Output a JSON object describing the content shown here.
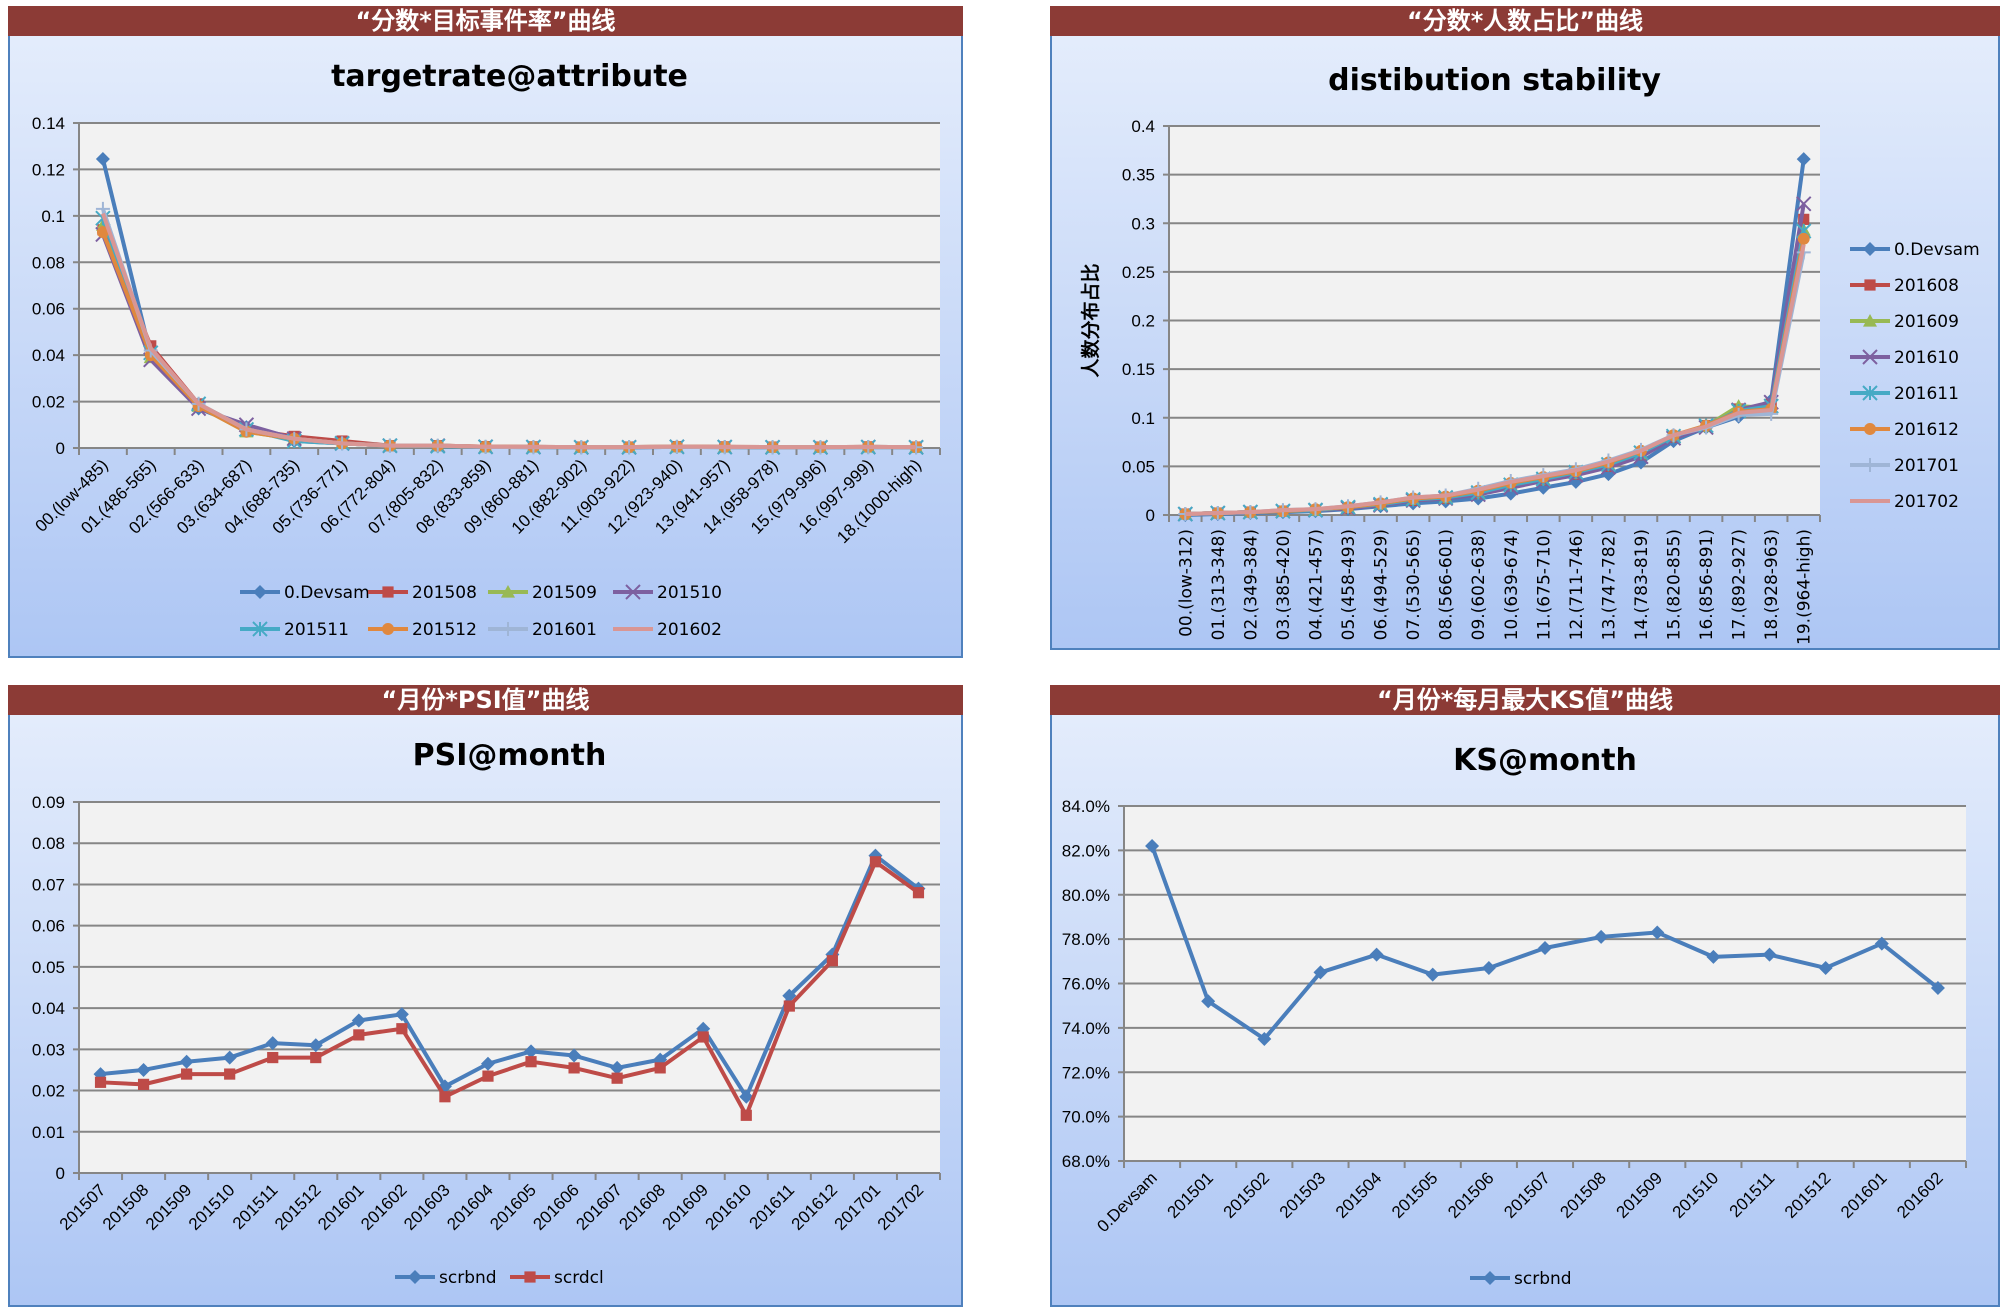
{
  "chart_data": [
    {
      "type": "line",
      "header": "“分数*目标事件率”曲线",
      "title": "targetrate@attribute",
      "ylabel": "",
      "ylim": [
        0,
        0.14
      ],
      "y_ticks": [
        "0",
        "0.02",
        "0.04",
        "0.06",
        "0.08",
        "0.1",
        "0.12",
        "0.14"
      ],
      "legend_position": "bottom",
      "categories": [
        "00.(low-485)",
        "01.(486-565)",
        "02.(566-633)",
        "03.(634-687)",
        "04.(688-735)",
        "05.(736-771)",
        "06.(772-804)",
        "07.(805-832)",
        "08.(833-859)",
        "09.(860-881)",
        "10.(882-902)",
        "11.(903-922)",
        "12.(923-940)",
        "13.(941-957)",
        "14.(958-978)",
        "15.(979-996)",
        "16.(997-999)",
        "18.(1000-high)"
      ],
      "series": [
        {
          "name": "0.Devsam",
          "color": "#4a7ebb",
          "marker": "diamond",
          "values": [
            0.1245,
            0.04,
            0.017,
            0.009,
            0.003,
            0.002,
            0.001,
            0.0008,
            0.0005,
            0.0005,
            0.0003,
            0.0003,
            0.0005,
            0.0005,
            0.0003,
            0.0003,
            0.0005,
            0.0003
          ]
        },
        {
          "name": "201508",
          "color": "#be4b48",
          "marker": "square",
          "values": [
            0.094,
            0.044,
            0.019,
            0.008,
            0.005,
            0.003,
            0.001,
            0.001,
            0.0006,
            0.0005,
            0.0004,
            0.0004,
            0.0006,
            0.0005,
            0.0004,
            0.0004,
            0.0005,
            0.0004
          ]
        },
        {
          "name": "201509",
          "color": "#98b954",
          "marker": "triangle",
          "values": [
            0.096,
            0.039,
            0.018,
            0.007,
            0.004,
            0.002,
            0.001,
            0.001,
            0.0005,
            0.0004,
            0.0003,
            0.0004,
            0.0005,
            0.0004,
            0.0003,
            0.0003,
            0.0004,
            0.0003
          ]
        },
        {
          "name": "201510",
          "color": "#7d60a0",
          "marker": "x",
          "values": [
            0.092,
            0.038,
            0.017,
            0.01,
            0.004,
            0.002,
            0.001,
            0.001,
            0.0005,
            0.0004,
            0.0003,
            0.0003,
            0.0005,
            0.0004,
            0.0003,
            0.0003,
            0.0004,
            0.0003
          ]
        },
        {
          "name": "201511",
          "color": "#46aac5",
          "marker": "asterisk",
          "values": [
            0.099,
            0.041,
            0.019,
            0.008,
            0.003,
            0.002,
            0.001,
            0.0008,
            0.0005,
            0.0004,
            0.0003,
            0.0003,
            0.0005,
            0.0004,
            0.0003,
            0.0003,
            0.0004,
            0.0003
          ]
        },
        {
          "name": "201512",
          "color": "#e0883e",
          "marker": "circle",
          "values": [
            0.093,
            0.04,
            0.018,
            0.007,
            0.004,
            0.002,
            0.001,
            0.001,
            0.0006,
            0.0005,
            0.0004,
            0.0004,
            0.0006,
            0.0005,
            0.0004,
            0.0004,
            0.0005,
            0.0004
          ]
        },
        {
          "name": "201601",
          "color": "#9fb5d6",
          "marker": "plus",
          "values": [
            0.103,
            0.042,
            0.019,
            0.008,
            0.004,
            0.002,
            0.001,
            0.001,
            0.0005,
            0.0004,
            0.0003,
            0.0004,
            0.0005,
            0.0004,
            0.0003,
            0.0003,
            0.0004,
            0.0003
          ]
        },
        {
          "name": "201602",
          "color": "#d99694",
          "marker": "none",
          "values": [
            0.101,
            0.043,
            0.019,
            0.008,
            0.004,
            0.002,
            0.001,
            0.001,
            0.0006,
            0.0005,
            0.0004,
            0.0004,
            0.0006,
            0.0005,
            0.0004,
            0.0004,
            0.0005,
            0.0004
          ]
        }
      ]
    },
    {
      "type": "line",
      "header": "“分数*人数占比”曲线",
      "title": "distibution stability",
      "ylabel": "人数分布占比",
      "ylim": [
        0,
        0.4
      ],
      "y_ticks": [
        "0",
        "0.05",
        "0.1",
        "0.15",
        "0.2",
        "0.25",
        "0.3",
        "0.35",
        "0.4"
      ],
      "legend_position": "right",
      "categories": [
        "00.(low-312)",
        "01.(313-348)",
        "02.(349-384)",
        "03.(385-420)",
        "04.(421-457)",
        "05.(458-493)",
        "06.(494-529)",
        "07.(530-565)",
        "08.(566-601)",
        "09.(602-638)",
        "10.(639-674)",
        "11.(675-710)",
        "12.(711-746)",
        "13.(747-782)",
        "14.(783-819)",
        "15.(820-855)",
        "16.(856-891)",
        "17.(892-927)",
        "18.(928-963)",
        "19.(964-high)"
      ],
      "series": [
        {
          "name": "0.Devsam",
          "color": "#4a7ebb",
          "marker": "diamond",
          "values": [
            0.0,
            0.001,
            0.002,
            0.003,
            0.004,
            0.006,
            0.009,
            0.012,
            0.014,
            0.017,
            0.022,
            0.028,
            0.034,
            0.042,
            0.054,
            0.076,
            0.09,
            0.101,
            0.118,
            0.366
          ]
        },
        {
          "name": "201608",
          "color": "#be4b48",
          "marker": "square",
          "values": [
            0.001,
            0.002,
            0.003,
            0.004,
            0.005,
            0.007,
            0.011,
            0.015,
            0.017,
            0.022,
            0.03,
            0.036,
            0.042,
            0.05,
            0.062,
            0.08,
            0.092,
            0.109,
            0.114,
            0.304
          ]
        },
        {
          "name": "201609",
          "color": "#98b954",
          "marker": "triangle",
          "values": [
            0.001,
            0.002,
            0.003,
            0.004,
            0.005,
            0.008,
            0.011,
            0.016,
            0.018,
            0.023,
            0.031,
            0.037,
            0.043,
            0.052,
            0.063,
            0.081,
            0.091,
            0.112,
            0.11,
            0.293
          ]
        },
        {
          "name": "201610",
          "color": "#7d60a0",
          "marker": "x",
          "values": [
            0.001,
            0.002,
            0.003,
            0.004,
            0.005,
            0.007,
            0.01,
            0.015,
            0.017,
            0.021,
            0.028,
            0.035,
            0.041,
            0.049,
            0.06,
            0.079,
            0.09,
            0.108,
            0.116,
            0.32
          ]
        },
        {
          "name": "201611",
          "color": "#46aac5",
          "marker": "asterisk",
          "values": [
            0.001,
            0.002,
            0.003,
            0.004,
            0.005,
            0.008,
            0.011,
            0.016,
            0.018,
            0.023,
            0.031,
            0.037,
            0.044,
            0.052,
            0.064,
            0.081,
            0.092,
            0.107,
            0.112,
            0.292
          ]
        },
        {
          "name": "201612",
          "color": "#e0883e",
          "marker": "circle",
          "values": [
            0.001,
            0.002,
            0.003,
            0.004,
            0.006,
            0.008,
            0.012,
            0.017,
            0.019,
            0.025,
            0.033,
            0.039,
            0.045,
            0.054,
            0.066,
            0.082,
            0.092,
            0.106,
            0.109,
            0.284
          ]
        },
        {
          "name": "201701",
          "color": "#9fb5d6",
          "marker": "plus",
          "values": [
            0.001,
            0.002,
            0.003,
            0.005,
            0.006,
            0.009,
            0.013,
            0.018,
            0.02,
            0.027,
            0.035,
            0.041,
            0.047,
            0.056,
            0.067,
            0.082,
            0.09,
            0.103,
            0.104,
            0.27
          ]
        },
        {
          "name": "201702",
          "color": "#d99694",
          "marker": "none",
          "values": [
            0.001,
            0.002,
            0.003,
            0.005,
            0.006,
            0.009,
            0.013,
            0.018,
            0.02,
            0.026,
            0.034,
            0.04,
            0.046,
            0.055,
            0.066,
            0.082,
            0.091,
            0.105,
            0.108,
            0.278
          ]
        }
      ]
    },
    {
      "type": "line",
      "header": "“月份*PSI值”曲线",
      "title": "PSI@month",
      "ylabel": "",
      "ylim": [
        0,
        0.09
      ],
      "y_ticks": [
        "0",
        "0.01",
        "0.02",
        "0.03",
        "0.04",
        "0.05",
        "0.06",
        "0.07",
        "0.08",
        "0.09"
      ],
      "legend_position": "bottom",
      "categories": [
        "201507",
        "201508",
        "201509",
        "201510",
        "201511",
        "201512",
        "201601",
        "201602",
        "201603",
        "201604",
        "201605",
        "201606",
        "201607",
        "201608",
        "201609",
        "201610",
        "201611",
        "201612",
        "201701",
        "201702"
      ],
      "series": [
        {
          "name": "scrbnd",
          "color": "#4a7ebb",
          "marker": "diamond",
          "values": [
            0.024,
            0.025,
            0.027,
            0.028,
            0.0315,
            0.031,
            0.037,
            0.0385,
            0.021,
            0.0265,
            0.0295,
            0.0285,
            0.0255,
            0.0275,
            0.035,
            0.0185,
            0.043,
            0.053,
            0.077,
            0.069
          ]
        },
        {
          "name": "scrdcl",
          "color": "#be4b48",
          "marker": "square",
          "values": [
            0.022,
            0.0215,
            0.024,
            0.024,
            0.028,
            0.028,
            0.0335,
            0.035,
            0.0185,
            0.0235,
            0.027,
            0.0255,
            0.023,
            0.0255,
            0.033,
            0.014,
            0.0405,
            0.0515,
            0.0755,
            0.068
          ]
        }
      ]
    },
    {
      "type": "line",
      "header": "“月份*每月最大KS值”曲线",
      "title": "KS@month",
      "ylabel": "",
      "ylim": [
        68,
        84
      ],
      "y_ticks": [
        "68.0%",
        "70.0%",
        "72.0%",
        "74.0%",
        "76.0%",
        "78.0%",
        "80.0%",
        "82.0%",
        "84.0%"
      ],
      "legend_position": "bottom",
      "categories": [
        "0.Devsam",
        "201501",
        "201502",
        "201503",
        "201504",
        "201505",
        "201506",
        "201507",
        "201508",
        "201509",
        "201510",
        "201511",
        "201512",
        "201601",
        "201602"
      ],
      "series": [
        {
          "name": "scrbnd",
          "color": "#4a7ebb",
          "marker": "diamond",
          "values": [
            82.2,
            75.2,
            73.5,
            76.5,
            77.3,
            76.4,
            76.7,
            77.6,
            78.1,
            78.3,
            77.2,
            77.3,
            76.7,
            77.8,
            75.8
          ]
        }
      ]
    }
  ]
}
